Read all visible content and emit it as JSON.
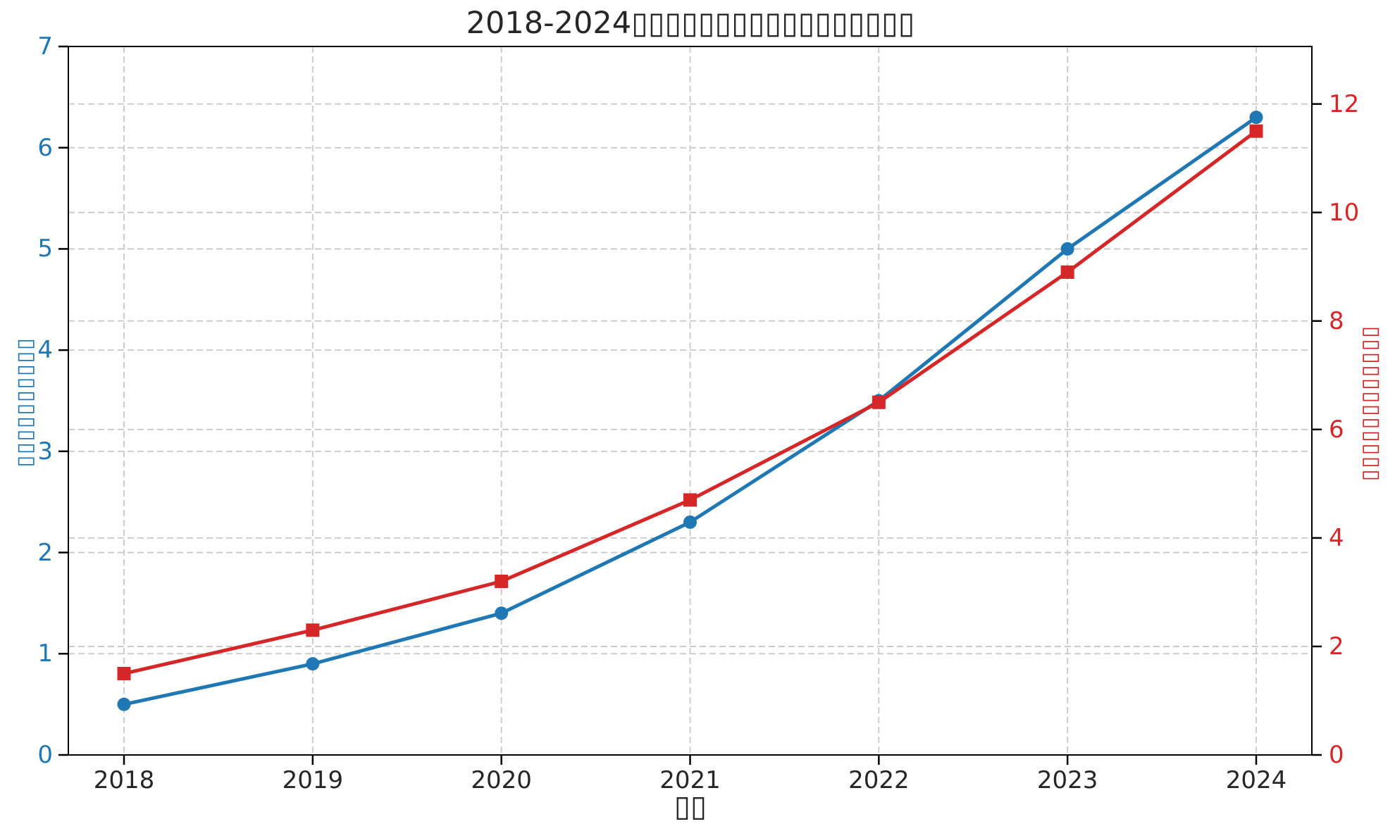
{
  "chart_data": {
    "type": "line",
    "title": "2018-2024▯▯▯▯▯▯▯▯▯▯▯▯▯▯▯▯▯",
    "xlabel": "▯▯",
    "ylabel_left": "▯▯▯▯▯▯▯▯▯▯",
    "ylabel_right": "▯▯▯▯▯▯▯▯▯▯▯▯",
    "categories": [
      "2018",
      "2019",
      "2020",
      "2021",
      "2022",
      "2023",
      "2024"
    ],
    "series": [
      {
        "name": "blue-left-axis",
        "axis": "left",
        "color": "#1f77b4",
        "marker": "circle",
        "values": [
          0.5,
          0.9,
          1.4,
          2.3,
          3.5,
          5.0,
          6.3
        ]
      },
      {
        "name": "red-right-axis",
        "axis": "right",
        "color": "#d62728",
        "marker": "square",
        "values": [
          1.5,
          2.3,
          3.2,
          4.7,
          6.5,
          8.9,
          11.5
        ]
      }
    ],
    "left_axis": {
      "min": 0,
      "max": 7,
      "ticks": [
        0,
        1,
        2,
        3,
        4,
        5,
        6,
        7
      ],
      "color": "#1f77b4"
    },
    "right_axis": {
      "min": 0,
      "max": 13.06,
      "ticks": [
        0,
        2,
        4,
        6,
        8,
        10,
        12
      ],
      "color": "#d62728"
    },
    "x_axis": {
      "color": "#262626"
    },
    "grid": true,
    "legend": false,
    "grid_color": "#c8c8c8",
    "spine_color": "#000000",
    "text_color": "#262626"
  }
}
